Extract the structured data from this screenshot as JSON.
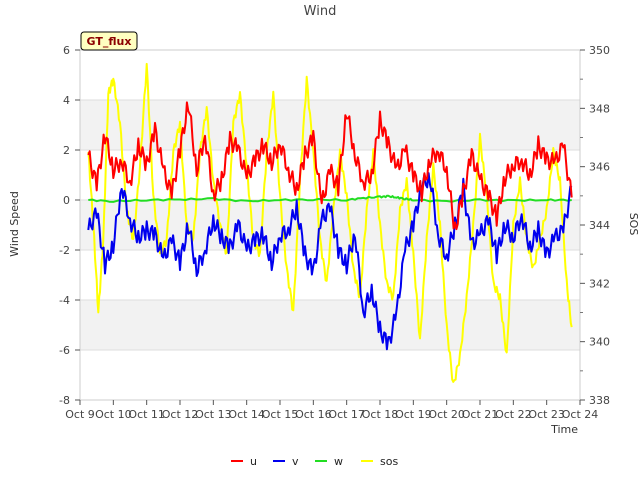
{
  "chart_data": {
    "type": "line",
    "title": "Wind",
    "badge": "GT_flux",
    "xlabel": "Time",
    "ylabel": "Wind Speed",
    "y2label": "SOS",
    "ylim": [
      -8,
      6
    ],
    "y2lim": [
      338,
      350
    ],
    "yticks": [
      -8,
      -6,
      -4,
      -2,
      0,
      2,
      4,
      6
    ],
    "y2ticks": [
      338,
      340,
      342,
      344,
      346,
      348,
      350
    ],
    "xlim": [
      0,
      15
    ],
    "xticks": [
      "Oct 9",
      "Oct 10",
      "Oct 11",
      "Oct 12",
      "Oct 13",
      "Oct 14",
      "Oct 15",
      "Oct 16",
      "Oct 17",
      "Oct 18",
      "Oct 19",
      "Oct 20",
      "Oct 21",
      "Oct 22",
      "Oct 23",
      "Oct 24"
    ],
    "grid": true,
    "legend_position": "bottom-center",
    "series": [
      {
        "name": "u",
        "color": "#ff0000",
        "axis": "left",
        "x": [
          0.25,
          0.5,
          0.75,
          1.0,
          1.25,
          1.5,
          1.75,
          2.0,
          2.25,
          2.5,
          2.75,
          3.0,
          3.25,
          3.5,
          3.75,
          4.0,
          4.25,
          4.5,
          4.75,
          5.0,
          5.25,
          5.5,
          5.75,
          6.0,
          6.25,
          6.5,
          6.75,
          7.0,
          7.25,
          7.5,
          7.75,
          8.0,
          8.25,
          8.5,
          8.75,
          9.0,
          9.25,
          9.5,
          9.75,
          10.0,
          10.25,
          10.5,
          10.75,
          11.0,
          11.25,
          11.5,
          11.75,
          12.0,
          12.25,
          12.5,
          12.75,
          13.0,
          13.25,
          13.5,
          13.75,
          14.0,
          14.25,
          14.5,
          14.75
        ],
        "values": [
          1.8,
          0.6,
          2.6,
          1.2,
          1.6,
          0.7,
          2.2,
          1.4,
          2.8,
          1.2,
          0.2,
          2.0,
          3.9,
          1.2,
          2.6,
          0.2,
          0.8,
          2.4,
          2.0,
          0.9,
          1.6,
          2.2,
          1.5,
          2.3,
          1.2,
          0.4,
          1.8,
          2.5,
          -0.2,
          1.2,
          0.5,
          3.6,
          1.8,
          0.7,
          1.0,
          3.2,
          2.2,
          1.2,
          2.0,
          1.0,
          0.3,
          1.6,
          2.0,
          1.2,
          -1.2,
          0.3,
          1.8,
          0.8,
          0.2,
          -0.7,
          0.9,
          1.4,
          1.6,
          1.0,
          2.2,
          1.6,
          1.5,
          2.2,
          0.1
        ]
      },
      {
        "name": "v",
        "color": "#0000ee",
        "axis": "left",
        "x": [
          0.25,
          0.5,
          0.75,
          1.0,
          1.25,
          1.5,
          1.75,
          2.0,
          2.25,
          2.5,
          2.75,
          3.0,
          3.25,
          3.5,
          3.75,
          4.0,
          4.25,
          4.5,
          4.75,
          5.0,
          5.25,
          5.5,
          5.75,
          6.0,
          6.25,
          6.5,
          6.75,
          7.0,
          7.25,
          7.5,
          7.75,
          8.0,
          8.25,
          8.5,
          8.75,
          9.0,
          9.25,
          9.5,
          9.75,
          10.0,
          10.25,
          10.5,
          10.75,
          11.0,
          11.25,
          11.5,
          11.75,
          12.0,
          12.25,
          12.5,
          12.75,
          13.0,
          13.25,
          13.5,
          13.75,
          14.0,
          14.25,
          14.5,
          14.75
        ],
        "values": [
          -1.2,
          -0.5,
          -2.6,
          -1.8,
          0.6,
          -0.8,
          -1.5,
          -1.2,
          -1.4,
          -2.4,
          -1.6,
          -2.5,
          -1.0,
          -2.8,
          -2.0,
          -0.8,
          -1.5,
          -1.9,
          -1.0,
          -2.0,
          -1.6,
          -1.4,
          -2.5,
          -1.4,
          -1.2,
          -0.3,
          -2.2,
          -2.9,
          -0.8,
          -0.3,
          -2.0,
          -2.6,
          -1.3,
          -4.5,
          -3.6,
          -5.2,
          -5.8,
          -4.5,
          -2.0,
          -1.0,
          0.6,
          0.9,
          -1.4,
          -2.3,
          -1.0,
          0.5,
          -1.8,
          -1.4,
          -0.8,
          -2.2,
          -1.0,
          -1.5,
          -0.6,
          -1.9,
          -1.2,
          -2.2,
          -1.5,
          -1.2,
          0.5
        ]
      },
      {
        "name": "w",
        "color": "#22dd22",
        "axis": "left",
        "x": [
          0.25,
          1.0,
          2.0,
          3.0,
          4.0,
          5.0,
          6.0,
          7.0,
          8.0,
          8.5,
          9.0,
          9.25,
          9.5,
          9.75,
          10.0,
          11.0,
          12.0,
          13.0,
          14.0,
          14.75
        ],
        "values": [
          0.0,
          -0.05,
          0.0,
          0.02,
          0.05,
          -0.05,
          0.0,
          0.02,
          0.0,
          0.08,
          0.12,
          0.15,
          0.1,
          0.05,
          0.0,
          -0.05,
          0.0,
          -0.02,
          0.0,
          0.0
        ]
      },
      {
        "name": "sos",
        "color": "#ffff00",
        "axis": "right",
        "x": [
          0.25,
          0.4,
          0.55,
          0.7,
          0.85,
          1.0,
          1.2,
          1.4,
          1.6,
          1.8,
          2.0,
          2.2,
          2.4,
          2.6,
          2.8,
          3.0,
          3.2,
          3.4,
          3.6,
          3.8,
          4.0,
          4.2,
          4.4,
          4.6,
          4.8,
          5.0,
          5.2,
          5.4,
          5.6,
          5.8,
          6.0,
          6.2,
          6.4,
          6.6,
          6.8,
          7.0,
          7.2,
          7.4,
          7.6,
          7.8,
          8.0,
          8.2,
          8.4,
          8.6,
          8.8,
          9.0,
          9.2,
          9.4,
          9.6,
          9.8,
          10.0,
          10.2,
          10.4,
          10.6,
          10.8,
          11.0,
          11.2,
          11.4,
          11.6,
          11.8,
          12.0,
          12.2,
          12.4,
          12.6,
          12.8,
          13.0,
          13.2,
          13.4,
          13.6,
          13.8,
          14.0,
          14.2,
          14.4,
          14.6,
          14.75
        ],
        "values": [
          346.5,
          344.0,
          341.0,
          343.5,
          348.5,
          349.0,
          347.5,
          344.5,
          343.5,
          346.0,
          349.5,
          345.0,
          343.0,
          343.5,
          346.5,
          347.5,
          344.0,
          343.5,
          346.5,
          348.0,
          345.5,
          344.0,
          343.0,
          347.5,
          348.5,
          346.0,
          343.5,
          343.0,
          346.5,
          348.5,
          345.0,
          342.5,
          341.0,
          345.5,
          349.0,
          346.5,
          343.5,
          342.0,
          344.5,
          346.5,
          345.0,
          342.5,
          341.5,
          344.5,
          346.5,
          344.0,
          342.0,
          341.5,
          344.5,
          345.5,
          343.0,
          340.0,
          343.5,
          346.0,
          344.0,
          340.5,
          338.5,
          339.5,
          341.5,
          344.0,
          347.0,
          345.0,
          342.0,
          341.5,
          339.5,
          344.0,
          345.5,
          343.5,
          342.5,
          343.5,
          344.5,
          346.5,
          345.5,
          342.0,
          340.5
        ]
      }
    ]
  }
}
